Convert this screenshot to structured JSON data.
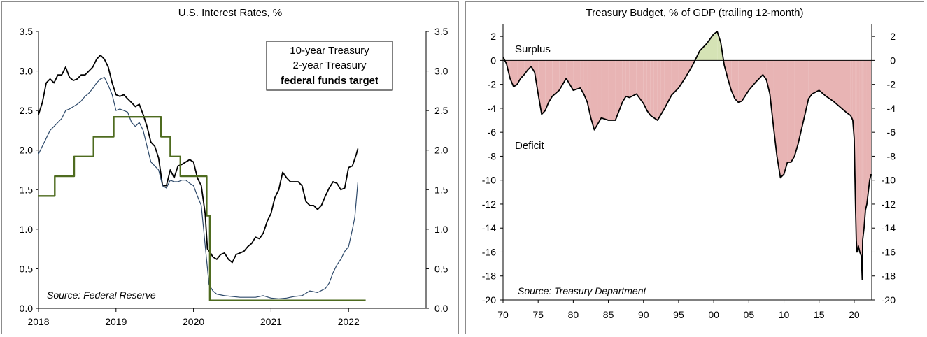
{
  "chart_data": [
    {
      "type": "line",
      "title": "U.S. Interest Rates, %",
      "source": "Source: Federal Reserve",
      "xlabel": "",
      "ylabel": "",
      "xlim": [
        2018.0,
        2023.0
      ],
      "ylim": [
        0.0,
        3.5
      ],
      "x_ticks": [
        "2018",
        "2019",
        "2020",
        "2021",
        "2022"
      ],
      "y_ticks_left": [
        "0.0",
        "0.5",
        "1.0",
        "1.5",
        "2.0",
        "2.5",
        "3.0",
        "3.5"
      ],
      "y_ticks_right": [
        "0.0",
        "0.5",
        "1.0",
        "1.5",
        "2.0",
        "2.5",
        "3.0",
        "3.5"
      ],
      "legend": {
        "placement": "top-right",
        "entries": [
          "10-year Treasury",
          "2-year Treasury",
          "federal funds target"
        ]
      },
      "series": [
        {
          "name": "10-year Treasury",
          "color": "#000000",
          "x": [
            2018.0,
            2018.05,
            2018.1,
            2018.15,
            2018.2,
            2018.25,
            2018.3,
            2018.35,
            2018.4,
            2018.45,
            2018.5,
            2018.55,
            2018.6,
            2018.65,
            2018.7,
            2018.75,
            2018.8,
            2018.85,
            2018.9,
            2018.95,
            2019.0,
            2019.05,
            2019.1,
            2019.15,
            2019.2,
            2019.25,
            2019.3,
            2019.35,
            2019.4,
            2019.45,
            2019.5,
            2019.55,
            2019.6,
            2019.65,
            2019.7,
            2019.75,
            2019.8,
            2019.85,
            2019.9,
            2019.95,
            2020.0,
            2020.05,
            2020.1,
            2020.15,
            2020.18,
            2020.22,
            2020.25,
            2020.3,
            2020.35,
            2020.4,
            2020.45,
            2020.5,
            2020.55,
            2020.6,
            2020.65,
            2020.7,
            2020.75,
            2020.8,
            2020.85,
            2020.9,
            2020.95,
            2021.0,
            2021.05,
            2021.1,
            2021.15,
            2021.2,
            2021.25,
            2021.3,
            2021.35,
            2021.4,
            2021.45,
            2021.5,
            2021.55,
            2021.6,
            2021.65,
            2021.7,
            2021.75,
            2021.8,
            2021.85,
            2021.9,
            2021.95,
            2022.0,
            2022.05,
            2022.1,
            2022.12
          ],
          "values": [
            2.45,
            2.6,
            2.85,
            2.9,
            2.85,
            2.95,
            2.95,
            3.05,
            2.92,
            2.88,
            2.9,
            2.95,
            2.95,
            3.0,
            3.05,
            3.15,
            3.2,
            3.15,
            3.05,
            2.85,
            2.7,
            2.68,
            2.7,
            2.65,
            2.6,
            2.55,
            2.58,
            2.45,
            2.3,
            2.1,
            2.05,
            1.9,
            1.55,
            1.55,
            1.75,
            1.65,
            1.8,
            1.82,
            1.85,
            1.88,
            1.85,
            1.65,
            1.55,
            1.2,
            0.75,
            0.7,
            0.65,
            0.62,
            0.68,
            0.7,
            0.62,
            0.58,
            0.68,
            0.7,
            0.72,
            0.78,
            0.82,
            0.9,
            0.88,
            0.95,
            1.1,
            1.2,
            1.4,
            1.5,
            1.72,
            1.65,
            1.6,
            1.6,
            1.6,
            1.55,
            1.35,
            1.3,
            1.3,
            1.25,
            1.3,
            1.42,
            1.52,
            1.6,
            1.58,
            1.5,
            1.52,
            1.78,
            1.8,
            1.95,
            2.02
          ]
        },
        {
          "name": "2-year Treasury",
          "color": "#2e4a6b",
          "x": [
            2018.0,
            2018.05,
            2018.1,
            2018.15,
            2018.2,
            2018.25,
            2018.3,
            2018.35,
            2018.4,
            2018.45,
            2018.5,
            2018.55,
            2018.6,
            2018.65,
            2018.7,
            2018.75,
            2018.8,
            2018.85,
            2018.9,
            2018.95,
            2019.0,
            2019.05,
            2019.1,
            2019.15,
            2019.2,
            2019.25,
            2019.3,
            2019.35,
            2019.4,
            2019.45,
            2019.5,
            2019.55,
            2019.6,
            2019.65,
            2019.7,
            2019.75,
            2019.8,
            2019.85,
            2019.9,
            2019.95,
            2020.0,
            2020.05,
            2020.1,
            2020.15,
            2020.2,
            2020.25,
            2020.3,
            2020.4,
            2020.5,
            2020.6,
            2020.7,
            2020.8,
            2020.9,
            2021.0,
            2021.1,
            2021.2,
            2021.3,
            2021.4,
            2021.5,
            2021.6,
            2021.7,
            2021.75,
            2021.8,
            2021.85,
            2021.9,
            2021.95,
            2022.0,
            2022.05,
            2022.08,
            2022.12
          ],
          "values": [
            1.95,
            2.05,
            2.15,
            2.25,
            2.3,
            2.35,
            2.4,
            2.5,
            2.52,
            2.55,
            2.58,
            2.62,
            2.68,
            2.72,
            2.78,
            2.85,
            2.9,
            2.92,
            2.82,
            2.7,
            2.5,
            2.52,
            2.5,
            2.48,
            2.35,
            2.3,
            2.35,
            2.25,
            2.05,
            1.85,
            1.8,
            1.75,
            1.55,
            1.52,
            1.62,
            1.6,
            1.6,
            1.62,
            1.62,
            1.58,
            1.55,
            1.42,
            1.3,
            0.8,
            0.3,
            0.22,
            0.18,
            0.16,
            0.15,
            0.14,
            0.14,
            0.14,
            0.16,
            0.13,
            0.12,
            0.13,
            0.15,
            0.16,
            0.22,
            0.2,
            0.25,
            0.32,
            0.45,
            0.55,
            0.62,
            0.72,
            0.78,
            1.0,
            1.15,
            1.6
          ]
        },
        {
          "name": "federal funds target",
          "color": "#4e6b1f",
          "x": [
            2018.0,
            2018.21,
            2018.21,
            2018.46,
            2018.46,
            2018.71,
            2018.71,
            2018.97,
            2018.97,
            2019.58,
            2019.58,
            2019.7,
            2019.7,
            2019.83,
            2019.83,
            2020.17,
            2020.17,
            2020.21,
            2020.21,
            2022.22
          ],
          "values": [
            1.42,
            1.42,
            1.67,
            1.67,
            1.92,
            1.92,
            2.17,
            2.17,
            2.42,
            2.42,
            2.17,
            2.17,
            1.92,
            1.92,
            1.67,
            1.67,
            1.17,
            1.17,
            0.1,
            0.1
          ]
        }
      ]
    },
    {
      "type": "area",
      "title": "Treasury Budget, % of GDP (trailing 12-month)",
      "source": "Source: Treasury Department",
      "xlabel": "",
      "ylabel": "",
      "xlim": [
        1970.0,
        2022.5
      ],
      "ylim": [
        -20,
        3
      ],
      "x_ticks": [
        "70",
        "75",
        "80",
        "85",
        "90",
        "95",
        "00",
        "05",
        "10",
        "15",
        "20"
      ],
      "y_ticks_left": [
        "2",
        "0",
        "-2",
        "-4",
        "-6",
        "-8",
        "-10",
        "-12",
        "-14",
        "-16",
        "-18",
        "-20"
      ],
      "y_ticks_right": [
        "2",
        "0",
        "-2",
        "-4",
        "-6",
        "-8",
        "-10",
        "-12",
        "-14",
        "-16",
        "-18",
        "-20"
      ],
      "annotations": [
        "Surplus",
        "Deficit"
      ],
      "colors": {
        "line": "#000000",
        "surplus_fill": "#d5e3b5",
        "deficit_fill": "#e8b4b4"
      },
      "series": [
        {
          "name": "",
          "x": [
            1970.0,
            1970.5,
            1971.0,
            1971.5,
            1972.0,
            1972.5,
            1973.0,
            1973.5,
            1974.0,
            1974.5,
            1975.0,
            1975.5,
            1976.0,
            1976.5,
            1977.0,
            1978.0,
            1979.0,
            1980.0,
            1981.0,
            1981.5,
            1982.0,
            1982.5,
            1983.0,
            1983.5,
            1984.0,
            1985.0,
            1986.0,
            1987.0,
            1987.5,
            1988.0,
            1989.0,
            1990.0,
            1990.5,
            1991.0,
            1991.5,
            1992.0,
            1992.5,
            1993.0,
            1994.0,
            1995.0,
            1996.0,
            1997.0,
            1998.0,
            1999.0,
            2000.0,
            2000.5,
            2001.0,
            2001.5,
            2002.0,
            2002.5,
            2003.0,
            2003.5,
            2004.0,
            2005.0,
            2006.0,
            2007.0,
            2007.5,
            2008.0,
            2008.5,
            2009.0,
            2009.5,
            2010.0,
            2010.5,
            2011.0,
            2011.5,
            2012.0,
            2013.0,
            2013.5,
            2014.0,
            2015.0,
            2016.0,
            2017.0,
            2018.0,
            2019.0,
            2019.5,
            2019.8,
            2020.0,
            2020.2,
            2020.3,
            2020.4,
            2020.6,
            2020.8,
            2021.0,
            2021.1,
            2021.15,
            2021.2,
            2021.4,
            2021.6,
            2021.8,
            2022.0,
            2022.2,
            2022.4
          ],
          "values": [
            0.3,
            -0.3,
            -1.5,
            -2.2,
            -2.0,
            -1.5,
            -1.2,
            -0.8,
            -0.5,
            -1.0,
            -2.8,
            -4.5,
            -4.2,
            -3.5,
            -3.0,
            -2.5,
            -1.5,
            -2.5,
            -2.3,
            -2.8,
            -3.5,
            -4.8,
            -5.8,
            -5.3,
            -4.8,
            -5.0,
            -5.0,
            -3.5,
            -3.0,
            -3.1,
            -2.8,
            -3.6,
            -4.2,
            -4.6,
            -4.8,
            -5.0,
            -4.5,
            -4.0,
            -2.9,
            -2.3,
            -1.4,
            -0.4,
            0.8,
            1.4,
            2.2,
            2.4,
            1.5,
            -0.4,
            -1.5,
            -2.5,
            -3.2,
            -3.5,
            -3.4,
            -2.5,
            -1.8,
            -1.2,
            -1.6,
            -2.8,
            -5.5,
            -8.0,
            -9.8,
            -9.5,
            -8.5,
            -8.5,
            -8.0,
            -7.0,
            -4.5,
            -3.2,
            -2.8,
            -2.5,
            -3.0,
            -3.4,
            -3.9,
            -4.4,
            -4.6,
            -5.0,
            -6.5,
            -12.5,
            -15.0,
            -16.0,
            -15.5,
            -16.0,
            -16.3,
            -17.5,
            -18.3,
            -15.0,
            -14.0,
            -12.5,
            -12.0,
            -11.0,
            -10.0,
            -9.5
          ]
        }
      ]
    }
  ]
}
